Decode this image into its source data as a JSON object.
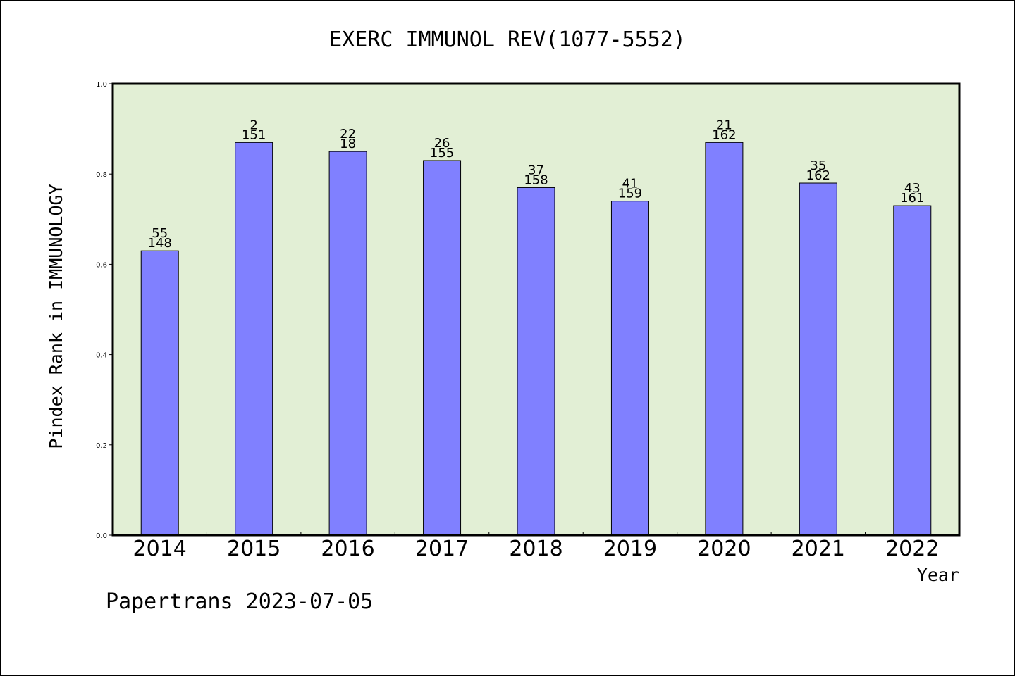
{
  "chart_data": {
    "type": "bar",
    "title": "EXERC IMMUNOL REV(1077-5552)",
    "xlabel": "Year",
    "ylabel": "Pindex Rank in IMMUNOLOGY",
    "ylim": [
      0,
      1.0
    ],
    "yticks": [
      "0.0",
      "0.2",
      "0.4",
      "0.6",
      "0.8",
      "1.0"
    ],
    "grid": false,
    "categories": [
      "2014",
      "2015",
      "2016",
      "2017",
      "2018",
      "2019",
      "2020",
      "2021",
      "2022"
    ],
    "values": [
      0.63,
      0.87,
      0.85,
      0.83,
      0.77,
      0.74,
      0.87,
      0.78,
      0.73
    ],
    "rank_labels": [
      "55",
      "2",
      "22",
      "26",
      "37",
      "41",
      "21",
      "35",
      "43"
    ],
    "total_labels": [
      "148",
      "151",
      "18",
      "155",
      "158",
      "159",
      "162",
      "162",
      "161"
    ],
    "colors": {
      "plot_background": "#e2efd5",
      "bar_fill": "#8080ff",
      "bar_stroke": "#000000"
    }
  },
  "footer": "Papertrans 2023-07-05"
}
